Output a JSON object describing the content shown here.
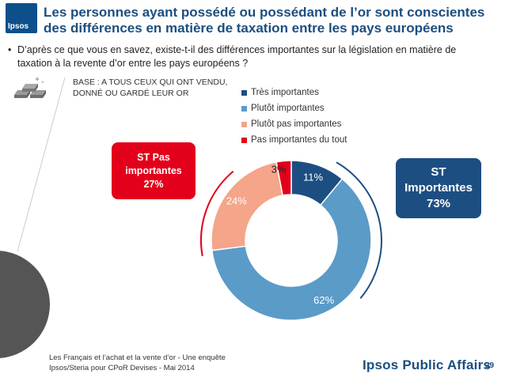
{
  "logo": {
    "text": "Ipsos"
  },
  "title": "Les personnes ayant possédé ou possédant de l’or sont conscientes des différences en matière de taxation entre les pays européens",
  "question": {
    "bullet": "•",
    "text": "D’après ce que vous en savez, existe-t-il des différences importantes sur la législation en matière de taxation à la revente d’or entre les pays européens ?"
  },
  "base": {
    "line1": "BASE : A TOUS CEUX QUI ONT VENDU,",
    "line2": "DONNÉ OU GARDÉ LEUR OR"
  },
  "badges": {
    "left": {
      "line1": "ST Pas",
      "line2": "importantes",
      "line3": "27%",
      "color": "#e3001b"
    },
    "right": {
      "line1": "ST",
      "line2": "Importantes",
      "line3": "73%",
      "color": "#1d4e82"
    }
  },
  "chart_data": {
    "type": "pie",
    "donut": true,
    "categories": [
      "Très importantes",
      "Plutôt importantes",
      "Plutôt pas importantes",
      "Pas importantes du tout"
    ],
    "values": [
      11,
      62,
      24,
      3
    ],
    "labels": [
      "11%",
      "62%",
      "24%",
      "3%"
    ],
    "colors": [
      "#1d4e82",
      "#5b9bc8",
      "#f4a58a",
      "#e3001b"
    ],
    "legend_position": "top-right"
  },
  "footer": {
    "line1": "Les Français et l’achat et la vente d’or - Une enquête",
    "line2": "Ipsos/Steria pour CPoR Devises - Mai 2014"
  },
  "brand": "Ipsos Public Affairs",
  "page_number": "29"
}
